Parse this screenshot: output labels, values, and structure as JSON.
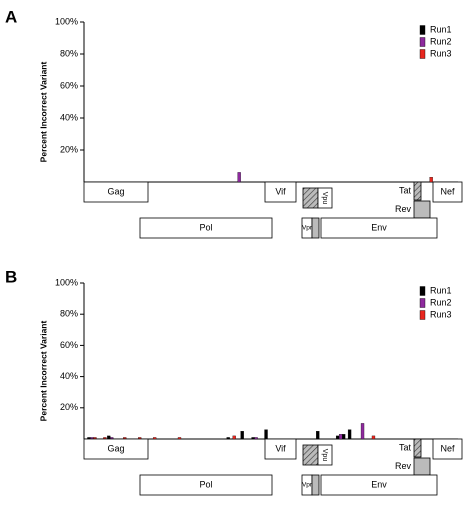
{
  "chart_data": [
    {
      "type": "bar",
      "panel": "A",
      "y_label": "Percent Incorrect Variant",
      "xlim": [
        0,
        9700
      ],
      "ylim": [
        0,
        100
      ],
      "yticks": [
        {
          "value": 20,
          "label": "20%"
        },
        {
          "value": 40,
          "label": "40%"
        },
        {
          "value": 60,
          "label": "60%"
        },
        {
          "value": 80,
          "label": "80%"
        },
        {
          "value": 100,
          "label": "100%"
        }
      ],
      "x": [
        4024,
        8926
      ],
      "series": [
        {
          "name": "Run1",
          "color": "#000000",
          "values": [
            null,
            null
          ]
        },
        {
          "name": "Run2",
          "color": "#8e2a9e",
          "values": [
            6,
            null
          ]
        },
        {
          "name": "Run3",
          "color": "#e8261e",
          "values": [
            null,
            3
          ]
        }
      ],
      "legend": "upper right",
      "genes": [
        "Gag",
        "Pol",
        "Vif",
        "Vpr",
        "Vpu",
        "Tat",
        "Rev",
        "Env",
        "Nef"
      ]
    },
    {
      "type": "bar",
      "panel": "B",
      "y_label": "Percent Incorrect Variant",
      "xlim": [
        0,
        9700
      ],
      "ylim": [
        0,
        100
      ],
      "yticks": [
        {
          "value": 20,
          "label": "20%"
        },
        {
          "value": 40,
          "label": "40%"
        },
        {
          "value": 60,
          "label": "60%"
        },
        {
          "value": 80,
          "label": "80%"
        },
        {
          "value": 100,
          "label": "100%"
        }
      ],
      "x": [
        206,
        464,
        722,
        980,
        1367,
        1754,
        2399,
        3818,
        4180,
        4463,
        4799,
        6140,
        6656,
        6811,
        6966,
        7224,
        7430
      ],
      "series": [
        {
          "name": "Run1",
          "color": "#000000",
          "values": [
            1,
            null,
            2,
            null,
            null,
            null,
            null,
            1,
            5,
            1,
            6,
            5,
            2,
            3,
            6,
            null,
            null
          ]
        },
        {
          "name": "Run2",
          "color": "#8e2a9e",
          "values": [
            1,
            null,
            1,
            null,
            null,
            null,
            null,
            null,
            null,
            1,
            null,
            null,
            3,
            null,
            null,
            10,
            null
          ]
        },
        {
          "name": "Run3",
          "color": "#e8261e",
          "values": [
            1,
            1,
            null,
            1,
            1,
            1,
            1,
            2,
            null,
            null,
            null,
            null,
            null,
            null,
            null,
            null,
            2
          ]
        }
      ],
      "legend": "upper right",
      "genes": [
        "Gag",
        "Pol",
        "Vif",
        "Vpr",
        "Vpu",
        "Tat",
        "Rev",
        "Env",
        "Nef"
      ]
    }
  ]
}
